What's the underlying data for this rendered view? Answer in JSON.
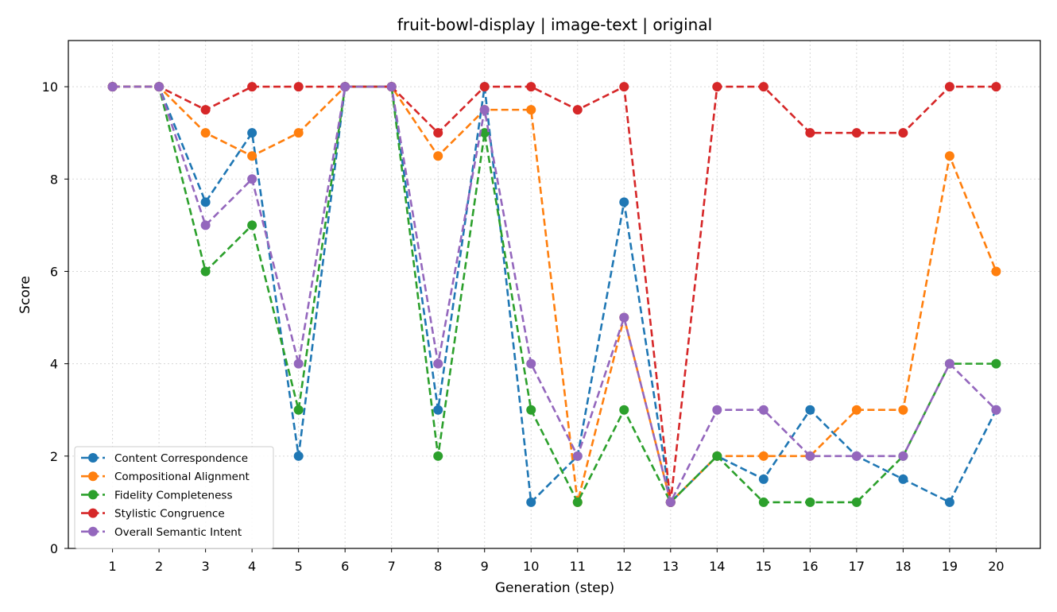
{
  "chart_data": {
    "type": "line",
    "title": "fruit-bowl-display | image-text | original",
    "xlabel": "Generation (step)",
    "ylabel": "Score",
    "x": [
      1,
      2,
      3,
      4,
      5,
      6,
      7,
      8,
      9,
      10,
      11,
      12,
      13,
      14,
      15,
      16,
      17,
      18,
      19,
      20
    ],
    "ylim": [
      0,
      11
    ],
    "yticks": [
      0,
      2,
      4,
      6,
      8,
      10
    ],
    "grid": true,
    "legend_position": "lower-left",
    "line_style": "dashed",
    "marker": "circle",
    "series": [
      {
        "name": "Content Correspondence",
        "color": "#1f77b4",
        "values": [
          10,
          10,
          7.5,
          9,
          2,
          10,
          10,
          3,
          10,
          1,
          2,
          7.5,
          1,
          2,
          1.5,
          3,
          2,
          1.5,
          1,
          3
        ]
      },
      {
        "name": "Compositional Alignment",
        "color": "#ff7f0e",
        "values": [
          10,
          10,
          9,
          8.5,
          9,
          10,
          10,
          8.5,
          9.5,
          9.5,
          1,
          5,
          1,
          2,
          2,
          2,
          3,
          3,
          8.5,
          6
        ]
      },
      {
        "name": "Fidelity Completeness",
        "color": "#2ca02c",
        "values": [
          10,
          10,
          6,
          7,
          3,
          10,
          10,
          2,
          9,
          3,
          1,
          3,
          1,
          2,
          1,
          1,
          1,
          2,
          4,
          4
        ]
      },
      {
        "name": "Stylistic Congruence",
        "color": "#d62728",
        "values": [
          10,
          10,
          9.5,
          10,
          10,
          10,
          10,
          9,
          10,
          10,
          9.5,
          10,
          1,
          10,
          10,
          9,
          9,
          9,
          10,
          10
        ]
      },
      {
        "name": "Overall Semantic Intent",
        "color": "#9467bd",
        "values": [
          10,
          10,
          7,
          8,
          4,
          10,
          10,
          4,
          9.5,
          4,
          2,
          5,
          1,
          3,
          3,
          2,
          2,
          2,
          4,
          3
        ]
      }
    ]
  }
}
